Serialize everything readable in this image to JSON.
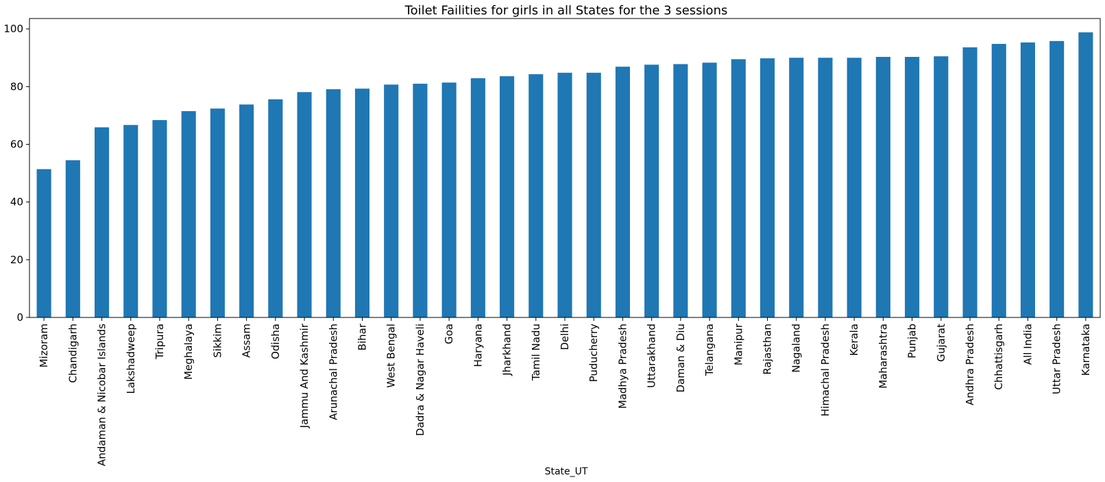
{
  "chart_data": {
    "type": "bar",
    "title": "Toilet Failities for girls in all States for the 3 sessions",
    "xlabel": "State_UT",
    "ylabel": "",
    "ylim": [
      0,
      103.6
    ],
    "yticks": [
      0,
      20,
      40,
      60,
      80,
      100
    ],
    "grid": false,
    "bar_color": "#1f77b4",
    "categories": [
      "Mizoram",
      "Chandigarh",
      "Andaman & Nicobar Islands",
      "Lakshadweep",
      "Tripura",
      "Meghalaya",
      "Sikkim",
      "Assam",
      "Odisha",
      "Jammu And Kashmir",
      "Arunachal Pradesh",
      "Bihar",
      "West Bengal",
      "Dadra & Nagar Haveli",
      "Goa",
      "Haryana",
      "Jharkhand",
      "Tamil Nadu",
      "Delhi",
      "Puducherry",
      "Madhya Pradesh",
      "Uttarakhand",
      "Daman & Diu",
      "Telangana",
      "Manipur",
      "Rajasthan",
      "Nagaland",
      "Himachal Pradesh",
      "Kerala",
      "Maharashtra",
      "Punjab",
      "Gujarat",
      "Andhra Pradesh",
      "Chhattisgarh",
      "All India",
      "Uttar Pradesh",
      "Karnataka"
    ],
    "values": [
      51.4,
      54.5,
      65.9,
      66.7,
      68.4,
      71.5,
      72.4,
      73.8,
      75.6,
      78.1,
      79.1,
      79.3,
      80.7,
      81.0,
      81.4,
      82.9,
      83.6,
      84.3,
      84.8,
      84.8,
      86.9,
      87.6,
      87.8,
      88.3,
      89.5,
      89.8,
      90.0,
      90.0,
      90.0,
      90.3,
      90.3,
      90.5,
      93.6,
      94.8,
      95.3,
      95.8,
      98.8
    ]
  }
}
